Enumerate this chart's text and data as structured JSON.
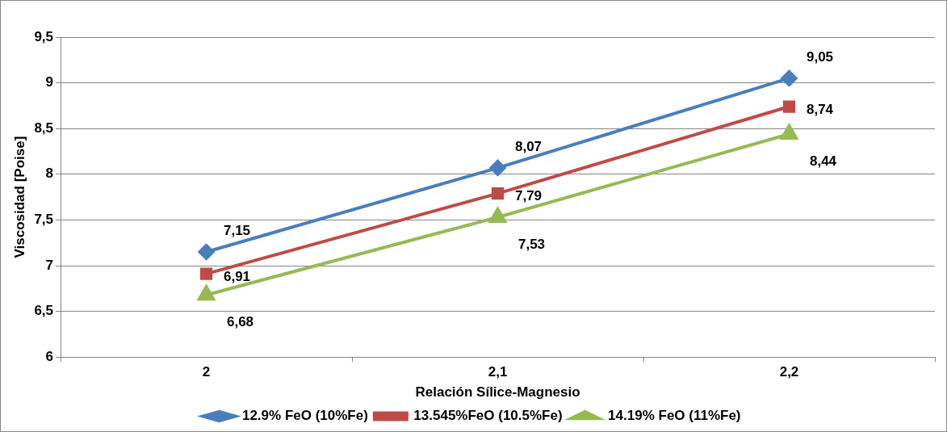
{
  "chart_data": {
    "type": "line",
    "xlabel": "Relación Sílice-Magnesio",
    "ylabel": "Viscosidad [Poise]",
    "categories": [
      "2",
      "2,1",
      "2,2"
    ],
    "series": [
      {
        "name": "12.9% FeO (10%Fe)",
        "color": "#4a7ebb",
        "marker": "diamond",
        "values": [
          7.15,
          8.07,
          9.05
        ],
        "value_labels": [
          "7,15",
          "8,07",
          "9,05"
        ]
      },
      {
        "name": "13.545%FeO (10.5%Fe)",
        "color": "#be4b48",
        "marker": "square",
        "values": [
          6.91,
          7.79,
          8.74
        ],
        "value_labels": [
          "6,91",
          "7,79",
          "8,74"
        ]
      },
      {
        "name": "14.19% FeO (11%Fe)",
        "color": "#98b954",
        "marker": "triangle",
        "values": [
          6.68,
          7.53,
          8.44
        ],
        "value_labels": [
          "6,68",
          "7,53",
          "8,44"
        ]
      }
    ],
    "ylim": [
      6,
      9.5
    ],
    "yticks": [
      {
        "value": 6,
        "label": "6"
      },
      {
        "value": 6.5,
        "label": "6,5"
      },
      {
        "value": 7,
        "label": "7"
      },
      {
        "value": 7.5,
        "label": "7,5"
      },
      {
        "value": 8,
        "label": "8"
      },
      {
        "value": 8.5,
        "label": "8,5"
      },
      {
        "value": 9,
        "label": "9"
      },
      {
        "value": 9.5,
        "label": "9,5"
      }
    ],
    "grid": "y",
    "legend": "bottom",
    "line_style": "solid"
  }
}
